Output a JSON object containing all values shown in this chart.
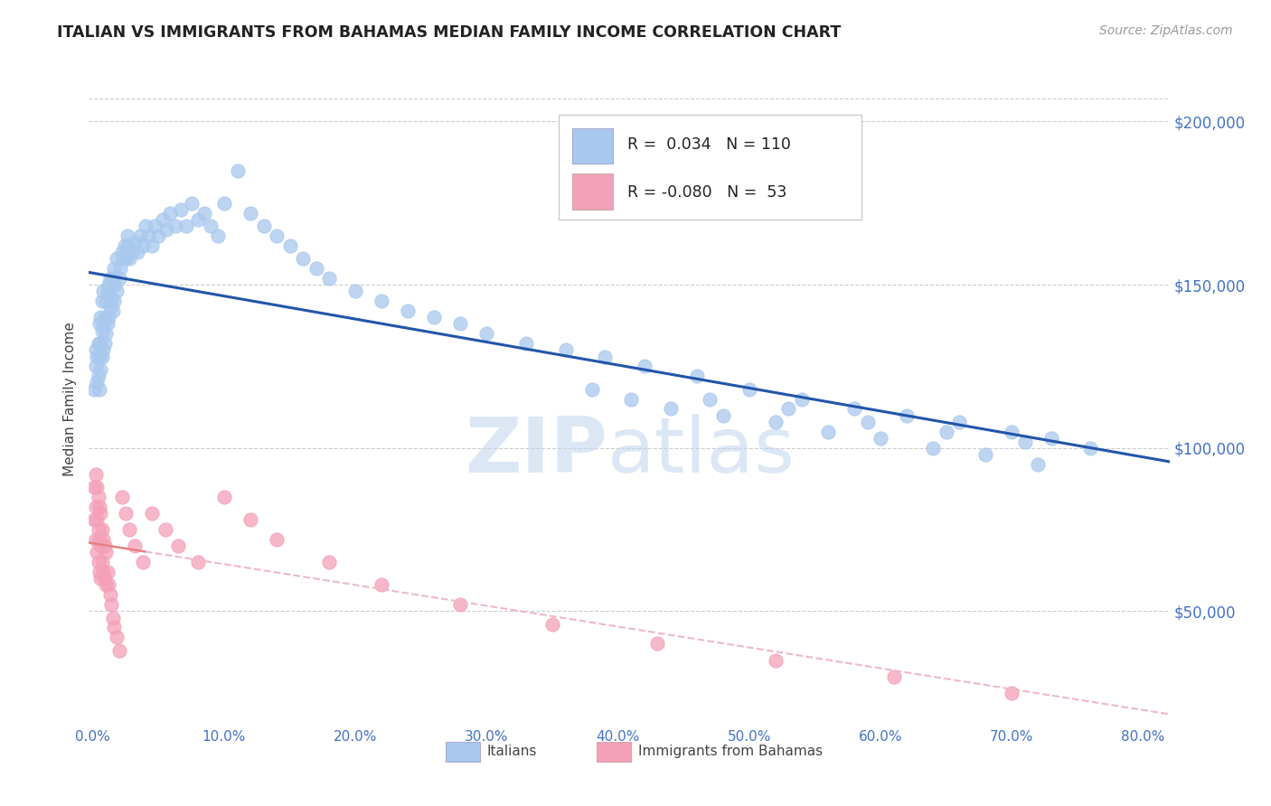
{
  "title": "ITALIAN VS IMMIGRANTS FROM BAHAMAS MEDIAN FAMILY INCOME CORRELATION CHART",
  "source_text": "Source: ZipAtlas.com",
  "ylabel": "Median Family Income",
  "ytick_labels": [
    "$50,000",
    "$100,000",
    "$150,000",
    "$200,000"
  ],
  "ytick_values": [
    50000,
    100000,
    150000,
    200000
  ],
  "ymin": 15000,
  "ymax": 215000,
  "xmin": -0.003,
  "xmax": 0.82,
  "watermark_zip": "ZIP",
  "watermark_atlas": "atlas",
  "legend_text1": "R =  0.034   N = 110",
  "legend_text2": "R = -0.080   N =  53",
  "italian_color": "#A8C8EE",
  "bahamas_color": "#F4A0B8",
  "trendline_italian_color": "#2255AA",
  "trendline_bahamas_color": "#E88080",
  "trendline_bahamas_dash_color": "#EEB8C8",
  "background_color": "#FFFFFF",
  "title_color": "#222222",
  "axis_label_color": "#4472C4",
  "grid_color": "#CCCCCC",
  "italians_scatter_x": [
    0.001,
    0.002,
    0.002,
    0.003,
    0.003,
    0.004,
    0.004,
    0.005,
    0.005,
    0.005,
    0.006,
    0.006,
    0.006,
    0.007,
    0.007,
    0.007,
    0.008,
    0.008,
    0.008,
    0.009,
    0.009,
    0.01,
    0.01,
    0.011,
    0.011,
    0.012,
    0.012,
    0.013,
    0.013,
    0.014,
    0.015,
    0.015,
    0.016,
    0.016,
    0.017,
    0.018,
    0.018,
    0.02,
    0.021,
    0.022,
    0.023,
    0.024,
    0.025,
    0.026,
    0.027,
    0.028,
    0.03,
    0.032,
    0.034,
    0.036,
    0.038,
    0.04,
    0.042,
    0.045,
    0.047,
    0.05,
    0.053,
    0.056,
    0.059,
    0.063,
    0.067,
    0.071,
    0.075,
    0.08,
    0.085,
    0.09,
    0.095,
    0.1,
    0.11,
    0.12,
    0.13,
    0.14,
    0.15,
    0.16,
    0.17,
    0.18,
    0.2,
    0.22,
    0.24,
    0.26,
    0.28,
    0.3,
    0.33,
    0.36,
    0.39,
    0.42,
    0.46,
    0.5,
    0.54,
    0.58,
    0.62,
    0.66,
    0.7,
    0.73,
    0.76,
    0.47,
    0.53,
    0.59,
    0.65,
    0.71,
    0.38,
    0.41,
    0.44,
    0.48,
    0.52,
    0.56,
    0.6,
    0.64,
    0.68,
    0.72
  ],
  "italians_scatter_y": [
    118000,
    125000,
    130000,
    120000,
    128000,
    122000,
    132000,
    118000,
    128000,
    138000,
    124000,
    132000,
    140000,
    128000,
    136000,
    145000,
    130000,
    138000,
    148000,
    132000,
    140000,
    135000,
    145000,
    138000,
    148000,
    140000,
    150000,
    143000,
    152000,
    146000,
    142000,
    152000,
    145000,
    155000,
    150000,
    148000,
    158000,
    152000,
    155000,
    160000,
    158000,
    162000,
    158000,
    165000,
    162000,
    158000,
    160000,
    163000,
    160000,
    165000,
    162000,
    168000,
    165000,
    162000,
    168000,
    165000,
    170000,
    167000,
    172000,
    168000,
    173000,
    168000,
    175000,
    170000,
    172000,
    168000,
    165000,
    175000,
    185000,
    172000,
    168000,
    165000,
    162000,
    158000,
    155000,
    152000,
    148000,
    145000,
    142000,
    140000,
    138000,
    135000,
    132000,
    130000,
    128000,
    125000,
    122000,
    118000,
    115000,
    112000,
    110000,
    108000,
    105000,
    103000,
    100000,
    115000,
    112000,
    108000,
    105000,
    102000,
    118000,
    115000,
    112000,
    110000,
    108000,
    105000,
    103000,
    100000,
    98000,
    95000
  ],
  "bahamas_scatter_x": [
    0.001,
    0.001,
    0.002,
    0.002,
    0.002,
    0.003,
    0.003,
    0.003,
    0.004,
    0.004,
    0.004,
    0.005,
    0.005,
    0.005,
    0.006,
    0.006,
    0.006,
    0.007,
    0.007,
    0.008,
    0.008,
    0.009,
    0.009,
    0.01,
    0.01,
    0.011,
    0.012,
    0.013,
    0.014,
    0.015,
    0.016,
    0.018,
    0.02,
    0.022,
    0.025,
    0.028,
    0.032,
    0.038,
    0.045,
    0.055,
    0.065,
    0.08,
    0.1,
    0.12,
    0.14,
    0.18,
    0.22,
    0.28,
    0.35,
    0.43,
    0.52,
    0.61,
    0.7
  ],
  "bahamas_scatter_y": [
    78000,
    88000,
    72000,
    82000,
    92000,
    68000,
    78000,
    88000,
    65000,
    75000,
    85000,
    62000,
    72000,
    82000,
    60000,
    70000,
    80000,
    65000,
    75000,
    62000,
    72000,
    60000,
    70000,
    58000,
    68000,
    62000,
    58000,
    55000,
    52000,
    48000,
    45000,
    42000,
    38000,
    85000,
    80000,
    75000,
    70000,
    65000,
    80000,
    75000,
    70000,
    65000,
    85000,
    78000,
    72000,
    65000,
    58000,
    52000,
    46000,
    40000,
    35000,
    30000,
    25000
  ]
}
